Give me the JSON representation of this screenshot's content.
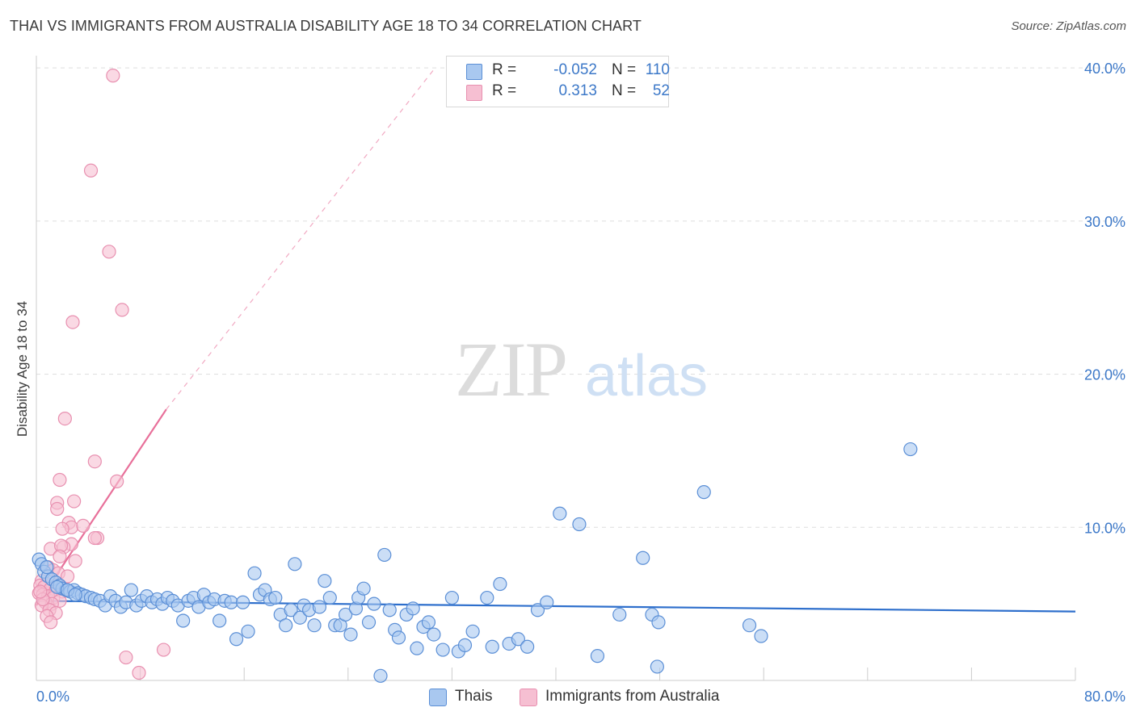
{
  "title": "THAI VS IMMIGRANTS FROM AUSTRALIA DISABILITY AGE 18 TO 34 CORRELATION CHART",
  "source": "Source: ZipAtlas.com",
  "watermark": {
    "zip": "ZIP",
    "atlas": "atlas"
  },
  "legend": {
    "r_label": "R =",
    "n_label": "N =",
    "rows": [
      {
        "series": "Thais",
        "r": "-0.052",
        "n": "110"
      },
      {
        "series": "Immigrants from Australia",
        "r": "0.313",
        "n": "52"
      }
    ]
  },
  "colors": {
    "thais_fill": "#a9c8f0",
    "thais_edge": "#5b8fd6",
    "thais_line": "#2e6fcc",
    "aus_fill": "#f6bfd2",
    "aus_edge": "#e890b0",
    "aus_line": "#e8709a",
    "tick_text": "#3c78c8",
    "grid": "#dddddd"
  },
  "chart_data": {
    "type": "scatter",
    "title": "THAI VS IMMIGRANTS FROM AUSTRALIA DISABILITY AGE 18 TO 34 CORRELATION CHART",
    "xlabel": "",
    "ylabel": "Disability Age 18 to 34",
    "xlim": [
      0,
      80
    ],
    "ylim": [
      0,
      40.8
    ],
    "x_tick_labels": [
      "0.0%",
      "80.0%"
    ],
    "y_ticks": [
      10,
      20,
      30,
      40
    ],
    "y_tick_labels": [
      "10.0%",
      "20.0%",
      "30.0%",
      "40.0%"
    ],
    "grid": true,
    "legend_position": "top-center",
    "series": [
      {
        "name": "Thais",
        "r": -0.052,
        "n": 110,
        "trend": {
          "x": [
            0,
            80
          ],
          "y": [
            5.2,
            4.5
          ]
        },
        "points": [
          [
            0.2,
            7.9
          ],
          [
            0.4,
            7.6
          ],
          [
            0.6,
            7.1
          ],
          [
            0.9,
            6.8
          ],
          [
            1.2,
            6.6
          ],
          [
            1.5,
            6.4
          ],
          [
            1.8,
            6.2
          ],
          [
            2.0,
            6.0
          ],
          [
            2.3,
            5.9
          ],
          [
            2.6,
            5.8
          ],
          [
            2.9,
            5.9
          ],
          [
            3.2,
            5.7
          ],
          [
            3.5,
            5.6
          ],
          [
            3.8,
            5.5
          ],
          [
            4.2,
            5.4
          ],
          [
            4.5,
            5.3
          ],
          [
            4.9,
            5.2
          ],
          [
            5.3,
            4.9
          ],
          [
            5.7,
            5.5
          ],
          [
            6.1,
            5.2
          ],
          [
            6.5,
            4.8
          ],
          [
            6.9,
            5.1
          ],
          [
            7.3,
            5.9
          ],
          [
            7.7,
            4.9
          ],
          [
            8.1,
            5.2
          ],
          [
            8.5,
            5.5
          ],
          [
            8.9,
            5.1
          ],
          [
            9.3,
            5.3
          ],
          [
            9.7,
            5.0
          ],
          [
            10.1,
            5.4
          ],
          [
            10.5,
            5.2
          ],
          [
            10.9,
            4.9
          ],
          [
            11.3,
            3.9
          ],
          [
            11.7,
            5.2
          ],
          [
            12.1,
            5.4
          ],
          [
            12.5,
            4.8
          ],
          [
            12.9,
            5.6
          ],
          [
            13.3,
            5.1
          ],
          [
            13.7,
            5.3
          ],
          [
            14.1,
            3.9
          ],
          [
            14.5,
            5.2
          ],
          [
            15.0,
            5.1
          ],
          [
            15.4,
            2.7
          ],
          [
            15.9,
            5.1
          ],
          [
            16.3,
            3.2
          ],
          [
            16.8,
            7.0
          ],
          [
            17.2,
            5.6
          ],
          [
            17.6,
            5.9
          ],
          [
            18.0,
            5.3
          ],
          [
            18.4,
            5.4
          ],
          [
            18.8,
            4.3
          ],
          [
            19.2,
            3.6
          ],
          [
            19.6,
            4.6
          ],
          [
            19.9,
            7.6
          ],
          [
            20.3,
            4.1
          ],
          [
            20.6,
            4.9
          ],
          [
            21.0,
            4.6
          ],
          [
            21.4,
            3.6
          ],
          [
            21.8,
            4.8
          ],
          [
            22.2,
            6.5
          ],
          [
            22.6,
            5.4
          ],
          [
            23.0,
            3.6
          ],
          [
            23.4,
            3.6
          ],
          [
            23.8,
            4.3
          ],
          [
            24.2,
            3.0
          ],
          [
            24.6,
            4.7
          ],
          [
            24.8,
            5.4
          ],
          [
            25.2,
            6.0
          ],
          [
            25.6,
            3.8
          ],
          [
            26.0,
            5.0
          ],
          [
            26.5,
            0.3
          ],
          [
            26.8,
            8.2
          ],
          [
            27.2,
            4.6
          ],
          [
            27.6,
            3.3
          ],
          [
            27.9,
            2.8
          ],
          [
            28.5,
            4.3
          ],
          [
            29.0,
            4.7
          ],
          [
            29.3,
            2.1
          ],
          [
            29.8,
            3.5
          ],
          [
            30.2,
            3.8
          ],
          [
            30.6,
            3.0
          ],
          [
            31.3,
            2.0
          ],
          [
            32.0,
            5.4
          ],
          [
            32.5,
            1.9
          ],
          [
            33.0,
            2.3
          ],
          [
            33.6,
            3.2
          ],
          [
            34.7,
            5.4
          ],
          [
            35.1,
            2.2
          ],
          [
            35.7,
            6.3
          ],
          [
            36.4,
            2.4
          ],
          [
            37.1,
            2.7
          ],
          [
            37.8,
            2.2
          ],
          [
            38.6,
            4.6
          ],
          [
            39.3,
            5.1
          ],
          [
            40.3,
            10.9
          ],
          [
            41.8,
            10.2
          ],
          [
            43.2,
            1.6
          ],
          [
            44.9,
            4.3
          ],
          [
            46.7,
            8.0
          ],
          [
            47.4,
            4.3
          ],
          [
            47.8,
            0.9
          ],
          [
            47.9,
            3.8
          ],
          [
            51.4,
            12.3
          ],
          [
            54.9,
            3.6
          ],
          [
            55.8,
            2.9
          ],
          [
            67.3,
            15.1
          ],
          [
            0.8,
            7.4
          ],
          [
            1.6,
            6.1
          ],
          [
            2.4,
            5.9
          ],
          [
            3.0,
            5.6
          ]
        ]
      },
      {
        "name": "Immigrants from Australia",
        "r": 0.313,
        "n": 52,
        "trend": {
          "x": [
            0,
            10
          ],
          "y": [
            4.9,
            17.7
          ]
        },
        "trend_ext": {
          "x": [
            10,
            30.7
          ],
          "y": [
            17.7,
            40.0
          ]
        },
        "points": [
          [
            5.9,
            39.5
          ],
          [
            4.2,
            33.3
          ],
          [
            5.6,
            28.0
          ],
          [
            6.6,
            24.2
          ],
          [
            2.8,
            23.4
          ],
          [
            2.2,
            17.1
          ],
          [
            4.5,
            14.3
          ],
          [
            6.2,
            13.0
          ],
          [
            1.8,
            13.1
          ],
          [
            2.9,
            11.7
          ],
          [
            1.6,
            11.6
          ],
          [
            1.6,
            11.2
          ],
          [
            2.5,
            10.3
          ],
          [
            2.7,
            10.0
          ],
          [
            3.6,
            10.1
          ],
          [
            2.0,
            9.9
          ],
          [
            4.7,
            9.3
          ],
          [
            4.5,
            9.3
          ],
          [
            2.7,
            8.9
          ],
          [
            2.1,
            8.7
          ],
          [
            1.1,
            8.6
          ],
          [
            1.9,
            8.8
          ],
          [
            1.8,
            8.1
          ],
          [
            3.0,
            7.8
          ],
          [
            0.9,
            7.4
          ],
          [
            1.3,
            7.2
          ],
          [
            1.7,
            7.0
          ],
          [
            2.4,
            6.8
          ],
          [
            0.4,
            6.5
          ],
          [
            0.8,
            6.3
          ],
          [
            0.3,
            6.2
          ],
          [
            0.6,
            6.1
          ],
          [
            1.1,
            6.0
          ],
          [
            1.5,
            5.9
          ],
          [
            2.0,
            5.8
          ],
          [
            0.2,
            5.7
          ],
          [
            0.5,
            5.6
          ],
          [
            0.9,
            5.5
          ],
          [
            1.3,
            5.4
          ],
          [
            1.8,
            5.2
          ],
          [
            0.7,
            5.1
          ],
          [
            1.2,
            5.0
          ],
          [
            0.4,
            4.9
          ],
          [
            1.0,
            4.6
          ],
          [
            1.5,
            4.4
          ],
          [
            0.8,
            4.2
          ],
          [
            1.1,
            3.8
          ],
          [
            6.9,
            1.5
          ],
          [
            7.9,
            0.5
          ],
          [
            9.8,
            2.0
          ],
          [
            0.5,
            5.3
          ],
          [
            0.3,
            5.8
          ]
        ]
      }
    ]
  }
}
